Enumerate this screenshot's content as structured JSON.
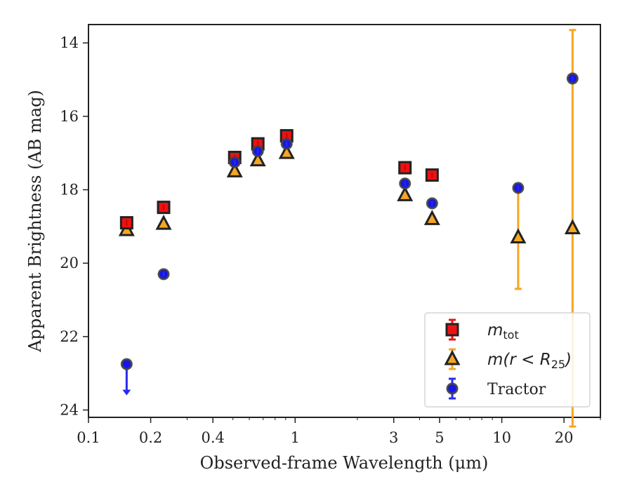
{
  "chart_data": {
    "type": "scatter",
    "title": "",
    "xlabel": "Observed-frame Wavelength (μm)",
    "ylabel": "Apparent Brightness (AB mag)",
    "xscale": "log",
    "xlim": [
      0.1,
      30
    ],
    "ylim": [
      24.2,
      13.5
    ],
    "y_inverted": true,
    "x_ticks": [
      0.1,
      0.2,
      0.4,
      1,
      3,
      5,
      10,
      20
    ],
    "x_tick_labels": [
      "0.1",
      "0.2",
      "0.4",
      "1",
      "3",
      "5",
      "10",
      "20"
    ],
    "y_ticks": [
      14,
      16,
      18,
      20,
      22,
      24
    ],
    "y_tick_labels": [
      "14",
      "16",
      "18",
      "20",
      "22",
      "24"
    ],
    "grid": false,
    "legend_position": "lower-right",
    "series": [
      {
        "name": "m_tot",
        "legend_label": {
          "m": "m",
          "sub": "tot"
        },
        "marker": "square",
        "fill": "#ee1111",
        "edge": "#222222",
        "error_color": "#ee1111",
        "points": [
          {
            "x": 0.153,
            "y": 18.9,
            "err": 0.05
          },
          {
            "x": 0.231,
            "y": 18.48,
            "err": 0.05
          },
          {
            "x": 0.51,
            "y": 17.12,
            "err": 0.05
          },
          {
            "x": 0.66,
            "y": 16.75,
            "err": 0.05
          },
          {
            "x": 0.91,
            "y": 16.53,
            "err": 0.05
          },
          {
            "x": 3.4,
            "y": 17.4,
            "err": 0.05
          },
          {
            "x": 4.6,
            "y": 17.6,
            "err": 0.05
          }
        ]
      },
      {
        "name": "m(r < R25)",
        "legend_label": {
          "pre": "m(r < R",
          "sub": "25",
          "post": ")"
        },
        "marker": "triangle",
        "fill": "#f5a623",
        "edge": "#222222",
        "error_color": "#f5a623",
        "points": [
          {
            "x": 0.153,
            "y": 19.1,
            "err": 0.05
          },
          {
            "x": 0.231,
            "y": 18.93,
            "err": 0.05
          },
          {
            "x": 0.51,
            "y": 17.5,
            "err": 0.05
          },
          {
            "x": 0.66,
            "y": 17.2,
            "err": 0.05
          },
          {
            "x": 0.91,
            "y": 17.0,
            "err": 0.05
          },
          {
            "x": 3.4,
            "y": 18.15,
            "err": 0.05
          },
          {
            "x": 4.6,
            "y": 18.8,
            "err": 0.05
          },
          {
            "x": 12.0,
            "y": 19.3,
            "err": 1.4
          },
          {
            "x": 22.0,
            "y": 19.05,
            "err": 5.4
          }
        ]
      },
      {
        "name": "Tractor",
        "legend_label": {
          "text": "Tractor"
        },
        "marker": "circle",
        "fill": "#1515ee",
        "edge": "#444444",
        "error_color": "#2a2aee",
        "points": [
          {
            "x": 0.153,
            "y": 22.75,
            "err": 0.0,
            "upper_limit": true
          },
          {
            "x": 0.231,
            "y": 20.3,
            "err": 0.05
          },
          {
            "x": 0.51,
            "y": 17.25,
            "err": 0.05
          },
          {
            "x": 0.66,
            "y": 16.95,
            "err": 0.05
          },
          {
            "x": 0.91,
            "y": 16.75,
            "err": 0.05
          },
          {
            "x": 3.4,
            "y": 17.83,
            "err": 0.05
          },
          {
            "x": 4.6,
            "y": 18.37,
            "err": 0.05
          },
          {
            "x": 12.0,
            "y": 17.95,
            "err": 0.05
          },
          {
            "x": 22.0,
            "y": 14.97,
            "err": 0.05
          }
        ]
      }
    ]
  }
}
